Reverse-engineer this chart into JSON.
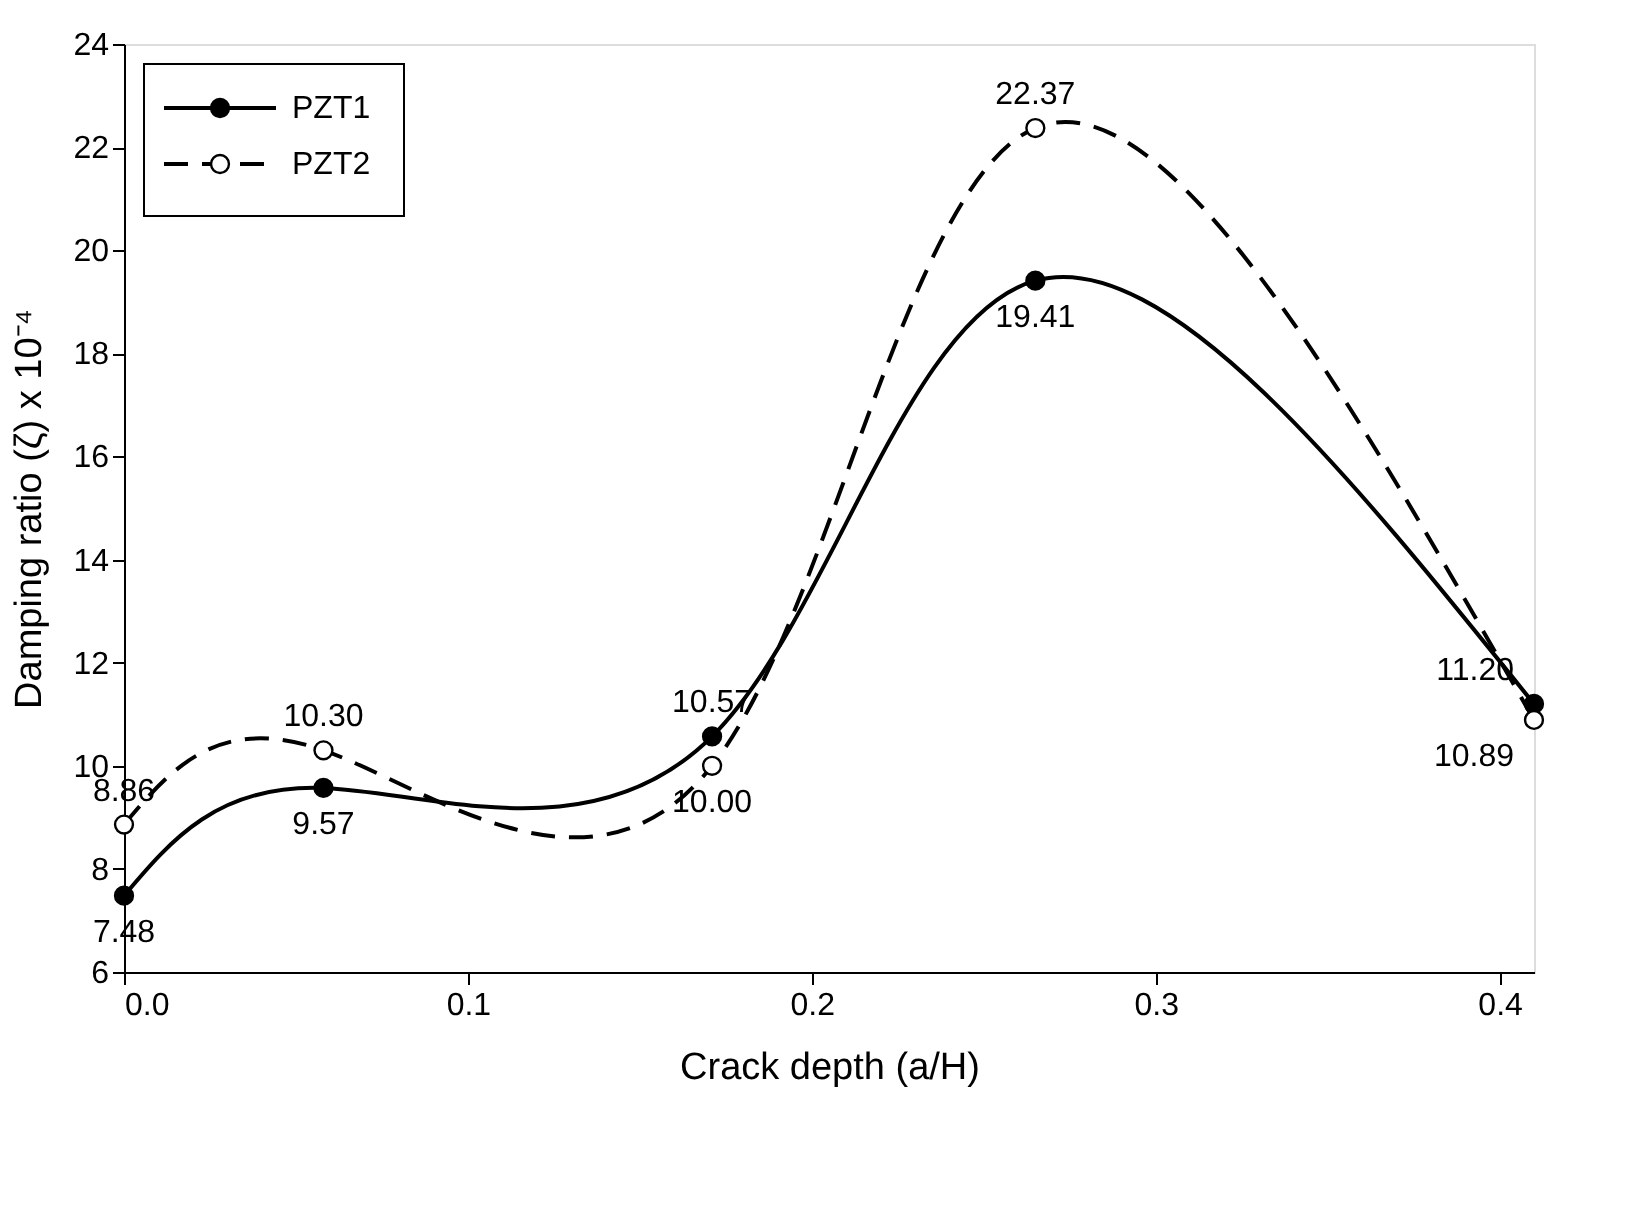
{
  "chart_data": {
    "type": "line",
    "xlabel": "Crack depth (a/H)",
    "ylabel": "Damping ratio (ζ) x 10⁻⁴",
    "x": [
      0,
      0.058,
      0.171,
      0.265,
      0.41
    ],
    "series": [
      {
        "name": "PZT1",
        "color": "#000000",
        "line_style": "solid",
        "values": [
          7.48,
          9.57,
          10.57,
          19.41,
          11.2
        ],
        "value_labels": [
          "7.48",
          "9.57",
          "10.57",
          "19.41",
          "11.20"
        ]
      },
      {
        "name": "PZT2",
        "color": "#000000",
        "line_style": "dashed",
        "values": [
          8.86,
          10.3,
          10.0,
          22.37,
          10.89
        ],
        "value_labels": [
          "8.86",
          "10.30",
          "10.00",
          "22.37",
          "10.89"
        ]
      }
    ],
    "xlim": [
      0,
      0.41
    ],
    "xticks": [
      {
        "value": 0,
        "label": "0.0"
      },
      0.1,
      0.2,
      0.3,
      0.4
    ],
    "ylim": [
      6,
      24
    ],
    "yticks": [
      6,
      8,
      10,
      12,
      14,
      16,
      18,
      20,
      22,
      24
    ],
    "marker": "circle",
    "grid": false,
    "legend": "top left"
  }
}
